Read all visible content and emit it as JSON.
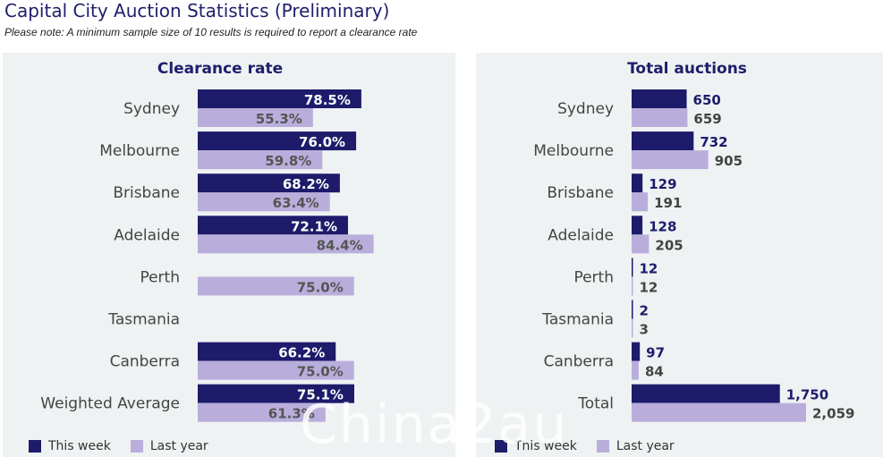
{
  "header": {
    "title": "Capital City Auction Statistics (Preliminary)",
    "note": "Please note: A minimum sample size of 10 results is required to report a clearance rate"
  },
  "colors": {
    "this_week": "#1e1b6b",
    "last_year": "#b9aedb"
  },
  "legend": {
    "this_week": "This week",
    "last_year": "Last year"
  },
  "watermark": "Chinа2au",
  "chart_data": [
    {
      "type": "bar",
      "orientation": "horizontal",
      "title": "Clearance rate",
      "categories": [
        "Sydney",
        "Melbourne",
        "Brisbane",
        "Adelaide",
        "Perth",
        "Tasmania",
        "Canberra",
        "Weighted Average"
      ],
      "series": [
        {
          "name": "This week",
          "values": [
            78.5,
            76.0,
            68.2,
            72.1,
            null,
            null,
            66.2,
            75.1
          ],
          "labels": [
            "78.5%",
            "76.0%",
            "68.2%",
            "72.1%",
            "",
            "",
            "66.2%",
            "75.1%"
          ]
        },
        {
          "name": "Last year",
          "values": [
            55.3,
            59.8,
            63.4,
            84.4,
            75.0,
            null,
            75.0,
            61.3
          ],
          "labels": [
            "55.3%",
            "59.8%",
            "63.4%",
            "84.4%",
            "75.0%",
            "",
            "75.0%",
            "61.3%"
          ]
        }
      ],
      "xlim": [
        0,
        100
      ]
    },
    {
      "type": "bar",
      "orientation": "horizontal",
      "title": "Total auctions",
      "categories": [
        "Sydney",
        "Melbourne",
        "Brisbane",
        "Adelaide",
        "Perth",
        "Tasmania",
        "Canberra",
        "Total"
      ],
      "series": [
        {
          "name": "This week",
          "values": [
            650,
            732,
            129,
            128,
            12,
            2,
            97,
            1750
          ],
          "labels": [
            "650",
            "732",
            "129",
            "128",
            "12",
            "2",
            "97",
            "1,750"
          ]
        },
        {
          "name": "Last year",
          "values": [
            659,
            905,
            191,
            205,
            12,
            3,
            84,
            2059
          ],
          "labels": [
            "659",
            "905",
            "191",
            "205",
            "12",
            "3",
            "84",
            "2,059"
          ]
        }
      ],
      "xlim": [
        0,
        2059
      ]
    }
  ]
}
